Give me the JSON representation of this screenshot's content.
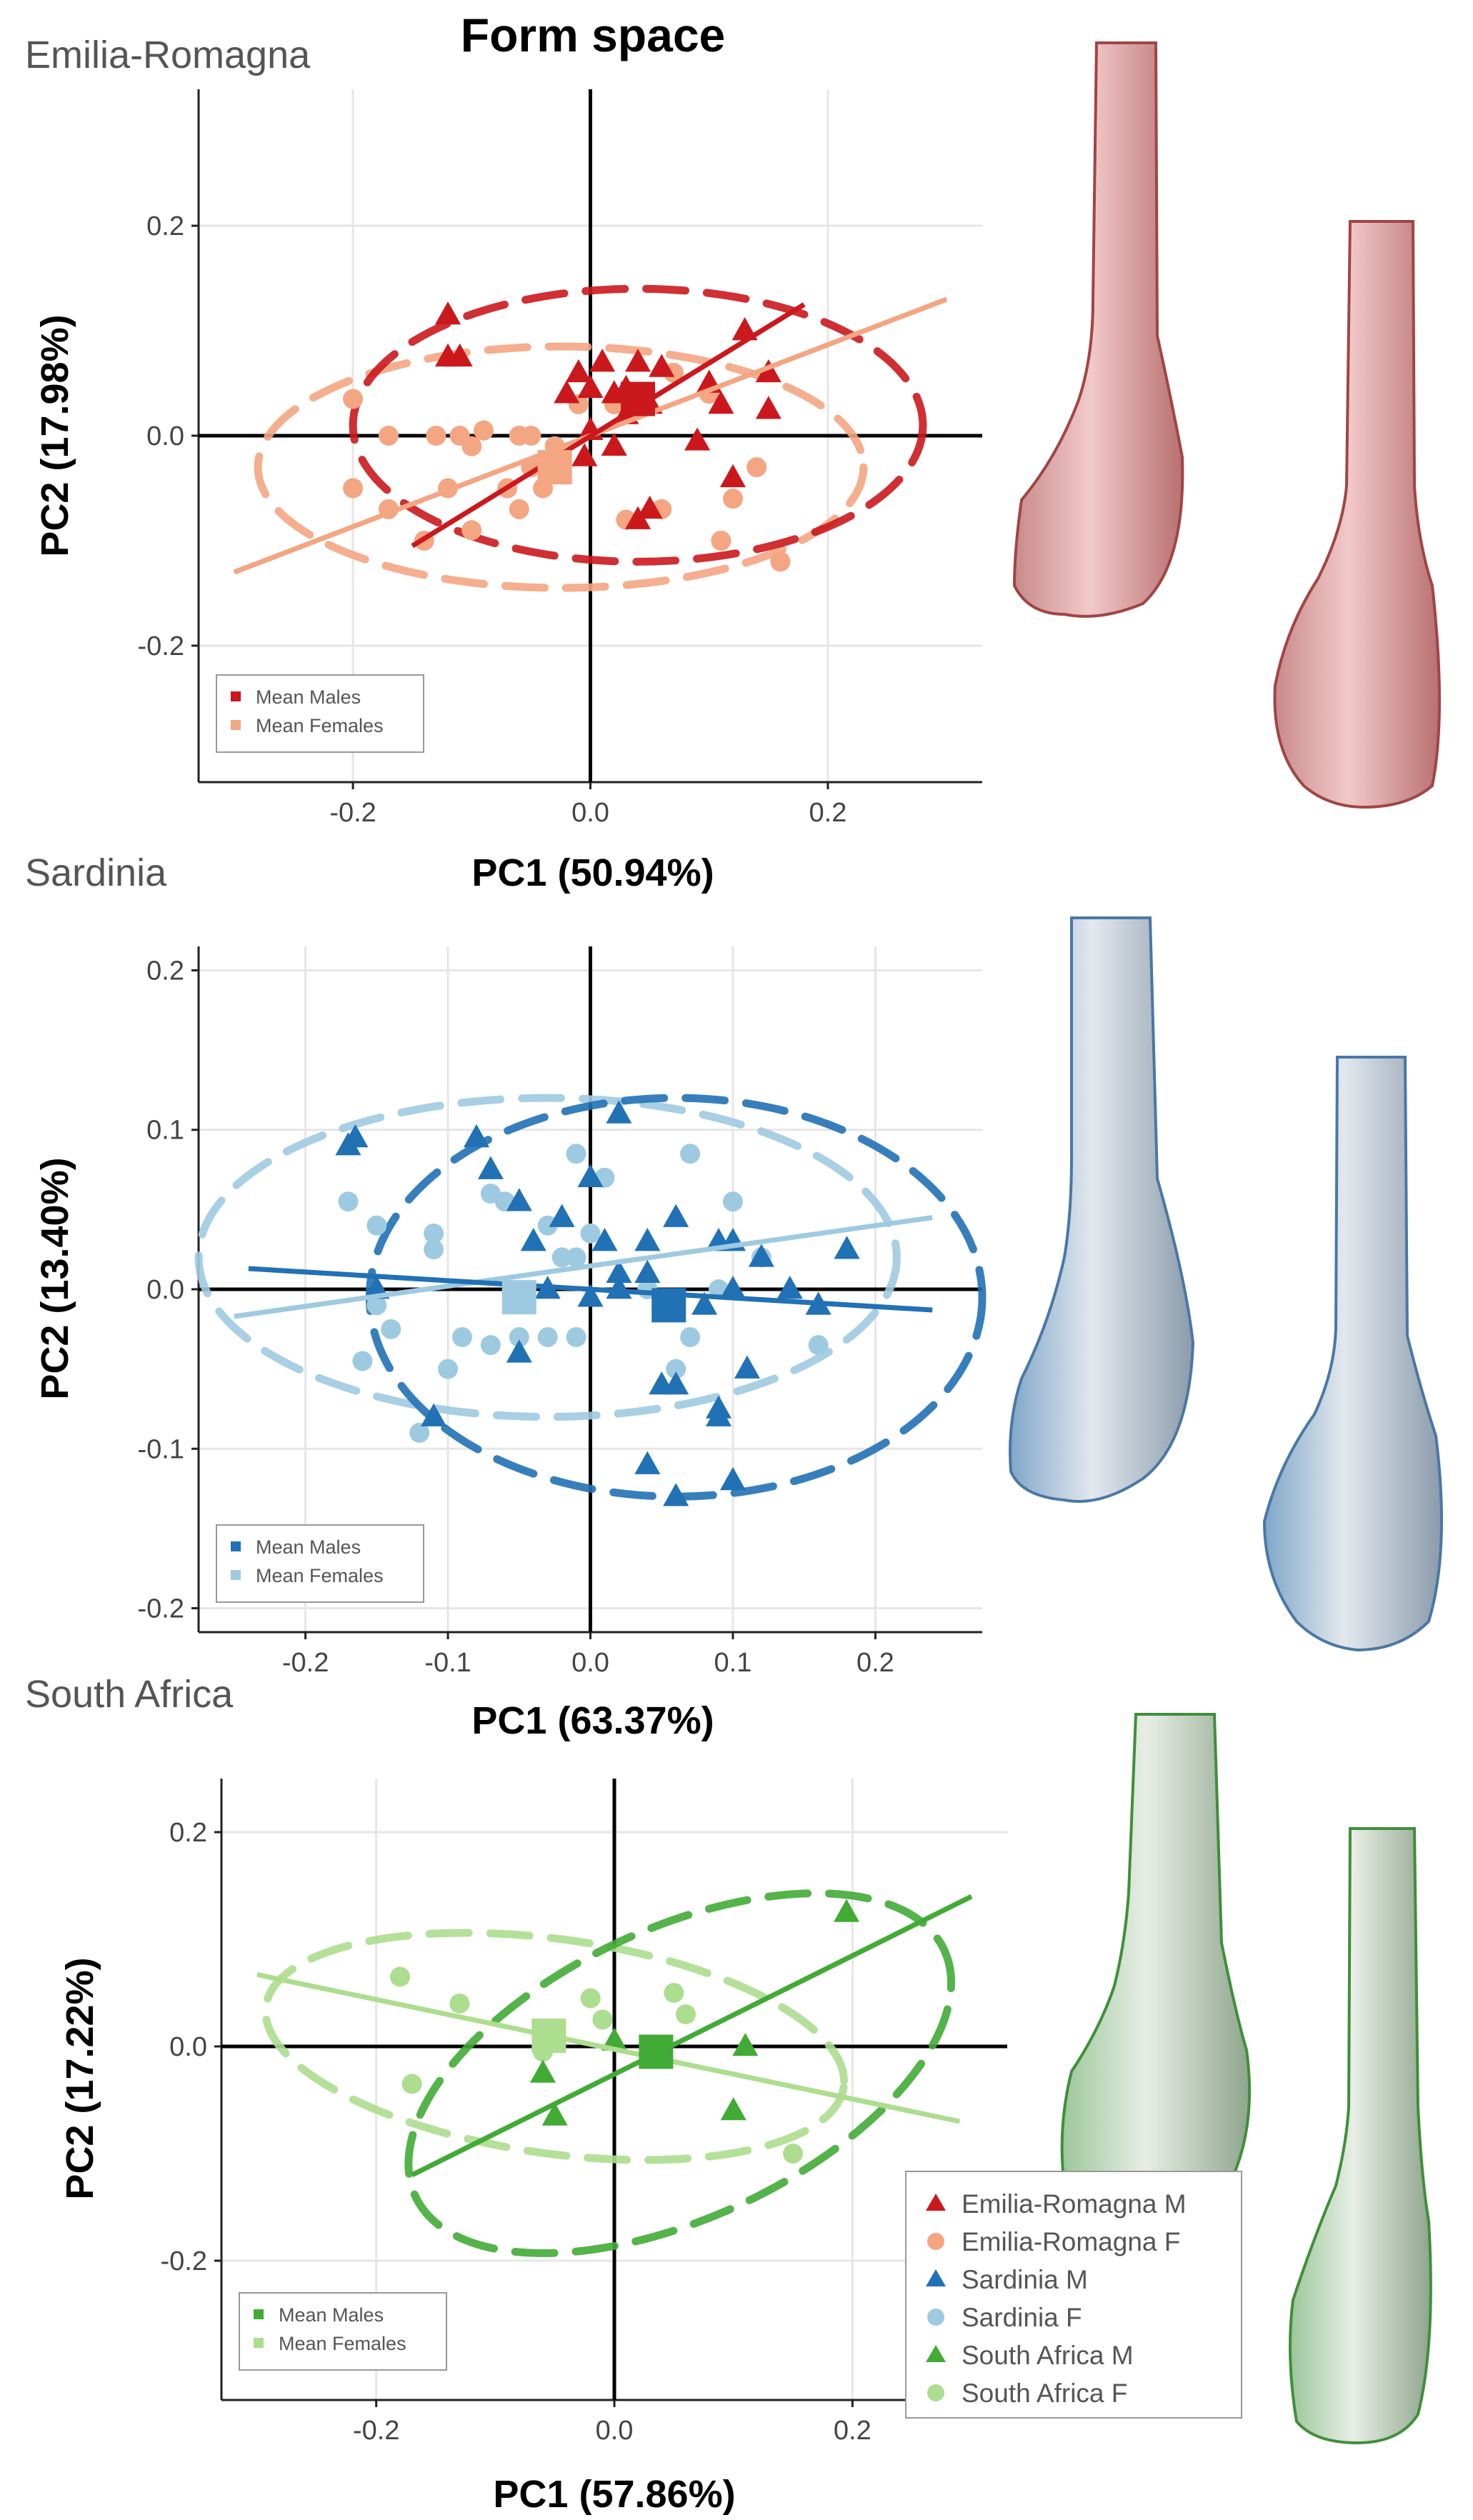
{
  "figure_title": "Form space",
  "colors": {
    "emilia_m": "#cb181d",
    "emilia_f": "#f4a582",
    "sardinia_m": "#2171b5",
    "sardinia_f": "#9ecae1",
    "safrica_m": "#41ab35",
    "safrica_f": "#addd8e"
  },
  "icons": [
    "bone-3d-render-icon"
  ],
  "legend": {
    "entries": [
      {
        "label": "Emilia-Romagna M",
        "shape": "triangle",
        "color": "#cb181d"
      },
      {
        "label": "Emilia-Romagna F",
        "shape": "circle",
        "color": "#f4a582"
      },
      {
        "label": "Sardinia M",
        "shape": "triangle",
        "color": "#2171b5"
      },
      {
        "label": "Sardinia F",
        "shape": "circle",
        "color": "#9ecae1"
      },
      {
        "label": "South Africa M",
        "shape": "triangle",
        "color": "#41ab35"
      },
      {
        "label": "South Africa F",
        "shape": "circle",
        "color": "#addd8e"
      }
    ]
  },
  "chart_data": [
    {
      "type": "scatter",
      "panel_label": "Emilia-Romagna",
      "xlabel": "PC1 (50.94%)",
      "ylabel": "PC2 (17.98%)",
      "xlim": [
        -0.33,
        0.33
      ],
      "ylim": [
        -0.33,
        0.33
      ],
      "xticks": [
        -0.2,
        0.0,
        0.2
      ],
      "yticks": [
        -0.2,
        0.0,
        0.2
      ],
      "xtick_labels": [
        "-0.2",
        "0.0",
        "0.2"
      ],
      "ytick_labels": [
        "-0.2",
        "0.0",
        "0.2"
      ],
      "legend_labels": [
        "Mean Males",
        "Mean Females"
      ],
      "male_color": "#cb181d",
      "female_color": "#f4a582",
      "males": [
        [
          -0.12,
          0.115
        ],
        [
          -0.11,
          0.075
        ],
        [
          -0.12,
          0.075
        ],
        [
          -0.01,
          0.06
        ],
        [
          0.01,
          0.07
        ],
        [
          0.02,
          0.04
        ],
        [
          -0.02,
          0.04
        ],
        [
          0.0,
          0.045
        ],
        [
          0.03,
          0.045
        ],
        [
          0.04,
          0.07
        ],
        [
          0.06,
          0.065
        ],
        [
          0.03,
          0.02
        ],
        [
          0.05,
          0.03
        ],
        [
          0.1,
          0.05
        ],
        [
          0.15,
          0.06
        ],
        [
          0.13,
          0.1
        ],
        [
          0.15,
          0.025
        ],
        [
          0.11,
          0.03
        ],
        [
          0.09,
          -0.005
        ],
        [
          0.12,
          -0.04
        ],
        [
          0.0,
          0.005
        ],
        [
          -0.005,
          -0.02
        ],
        [
          0.02,
          -0.01
        ],
        [
          0.05,
          -0.07
        ],
        [
          0.04,
          -0.08
        ]
      ],
      "females": [
        [
          -0.2,
          0.035
        ],
        [
          -0.17,
          0.0
        ],
        [
          -0.13,
          0.0
        ],
        [
          -0.11,
          0.0
        ],
        [
          -0.1,
          -0.01
        ],
        [
          -0.09,
          0.005
        ],
        [
          -0.06,
          0.0
        ],
        [
          -0.05,
          0.0
        ],
        [
          -0.03,
          -0.01
        ],
        [
          -0.05,
          -0.03
        ],
        [
          -0.04,
          -0.05
        ],
        [
          -0.07,
          -0.05
        ],
        [
          -0.06,
          -0.07
        ],
        [
          -0.12,
          -0.05
        ],
        [
          -0.17,
          -0.07
        ],
        [
          -0.2,
          -0.05
        ],
        [
          -0.1,
          -0.09
        ],
        [
          -0.14,
          -0.1
        ],
        [
          0.03,
          -0.08
        ],
        [
          0.06,
          -0.07
        ],
        [
          0.11,
          -0.1
        ],
        [
          0.12,
          -0.06
        ],
        [
          0.16,
          -0.12
        ],
        [
          0.14,
          -0.03
        ],
        [
          0.07,
          0.06
        ],
        [
          0.1,
          0.04
        ],
        [
          -0.01,
          0.03
        ],
        [
          0.02,
          0.03
        ]
      ],
      "mean_male": [
        0.04,
        0.035
      ],
      "mean_female": [
        -0.03,
        -0.03
      ],
      "male_ellipse": {
        "cx": 0.04,
        "cy": 0.01,
        "rx": 0.24,
        "ry": 0.13,
        "angle": 0
      },
      "female_ellipse": {
        "cx": -0.025,
        "cy": -0.03,
        "rx": 0.255,
        "ry": 0.115,
        "angle": 0
      },
      "male_line": [
        [
          -0.15,
          -0.105
        ],
        [
          0.18,
          0.125
        ]
      ],
      "female_line": [
        [
          -0.3,
          -0.13
        ],
        [
          0.3,
          0.13
        ]
      ]
    },
    {
      "type": "scatter",
      "panel_label": "Sardinia",
      "xlabel": "PC1 (63.37%)",
      "ylabel": "PC2 (13.40%)",
      "xlim": [
        -0.275,
        0.275
      ],
      "ylim": [
        -0.215,
        0.215
      ],
      "xticks": [
        -0.2,
        -0.1,
        0.0,
        0.1,
        0.2
      ],
      "yticks": [
        -0.2,
        -0.1,
        0.0,
        0.1,
        0.2
      ],
      "xtick_labels": [
        "-0.2",
        "-0.1",
        "0.0",
        "0.1",
        "0.2"
      ],
      "ytick_labels": [
        "-0.2",
        "-0.1",
        "0.0",
        "0.1",
        "0.2"
      ],
      "legend_labels": [
        "Mean Males",
        "Mean Females"
      ],
      "male_color": "#2171b5",
      "female_color": "#9ecae1",
      "males": [
        [
          -0.165,
          0.095
        ],
        [
          -0.08,
          0.095
        ],
        [
          -0.07,
          0.075
        ],
        [
          0.02,
          0.11
        ],
        [
          -0.05,
          0.055
        ],
        [
          -0.04,
          0.03
        ],
        [
          -0.03,
          0.0
        ],
        [
          -0.02,
          0.045
        ],
        [
          0.0,
          0.07
        ],
        [
          0.01,
          0.03
        ],
        [
          0.0,
          -0.005
        ],
        [
          0.02,
          0.01
        ],
        [
          0.04,
          0.03
        ],
        [
          0.06,
          0.045
        ],
        [
          0.09,
          0.03
        ],
        [
          0.1,
          0.03
        ],
        [
          0.12,
          0.02
        ],
        [
          0.14,
          0.0
        ],
        [
          0.16,
          -0.01
        ],
        [
          0.18,
          0.025
        ],
        [
          0.1,
          0.0
        ],
        [
          0.11,
          -0.05
        ],
        [
          0.09,
          -0.075
        ],
        [
          0.1,
          -0.12
        ],
        [
          0.06,
          -0.06
        ],
        [
          0.05,
          -0.06
        ],
        [
          0.04,
          -0.11
        ],
        [
          0.06,
          -0.13
        ],
        [
          0.09,
          -0.08
        ],
        [
          -0.11,
          -0.08
        ],
        [
          -0.17,
          0.09
        ],
        [
          -0.05,
          -0.04
        ],
        [
          0.02,
          0.0
        ],
        [
          0.04,
          0.01
        ],
        [
          -0.15,
          0.0
        ],
        [
          0.08,
          -0.01
        ]
      ],
      "females": [
        [
          -0.17,
          0.055
        ],
        [
          -0.15,
          0.04
        ],
        [
          -0.11,
          0.035
        ],
        [
          -0.11,
          0.025
        ],
        [
          -0.07,
          0.06
        ],
        [
          -0.06,
          0.055
        ],
        [
          -0.01,
          0.085
        ],
        [
          0.01,
          0.07
        ],
        [
          -0.03,
          0.04
        ],
        [
          -0.02,
          0.02
        ],
        [
          -0.01,
          0.02
        ],
        [
          0.0,
          0.035
        ],
        [
          0.04,
          0.0
        ],
        [
          0.07,
          -0.03
        ],
        [
          0.09,
          0.0
        ],
        [
          0.12,
          0.02
        ],
        [
          0.16,
          -0.035
        ],
        [
          -0.15,
          -0.01
        ],
        [
          -0.14,
          -0.025
        ],
        [
          -0.09,
          -0.03
        ],
        [
          -0.07,
          -0.035
        ],
        [
          -0.05,
          -0.03
        ],
        [
          -0.03,
          -0.03
        ],
        [
          -0.01,
          -0.03
        ],
        [
          0.06,
          -0.05
        ],
        [
          -0.12,
          -0.09
        ],
        [
          -0.1,
          -0.05
        ],
        [
          -0.16,
          -0.045
        ],
        [
          0.07,
          0.085
        ],
        [
          0.1,
          0.055
        ]
      ],
      "mean_male": [
        0.055,
        -0.01
      ],
      "mean_female": [
        -0.05,
        -0.005
      ],
      "male_ellipse": {
        "cx": 0.06,
        "cy": -0.005,
        "rx": 0.215,
        "ry": 0.125,
        "angle": 0
      },
      "female_ellipse": {
        "cx": -0.03,
        "cy": 0.02,
        "rx": 0.245,
        "ry": 0.1,
        "angle": 0
      },
      "male_line": [
        [
          -0.24,
          0.013
        ],
        [
          0.24,
          -0.013
        ]
      ],
      "female_line": [
        [
          -0.25,
          -0.017
        ],
        [
          0.24,
          0.045
        ]
      ]
    },
    {
      "type": "scatter",
      "panel_label": "South Africa",
      "xlabel": "PC1 (57.86%)",
      "ylabel": "PC2 (17.22%)",
      "xlim": [
        -0.33,
        0.33
      ],
      "ylim": [
        -0.33,
        0.25
      ],
      "xticks": [
        -0.2,
        0.0,
        0.2
      ],
      "yticks": [
        -0.2,
        0.0,
        0.2
      ],
      "xtick_labels": [
        "-0.2",
        "0.0",
        "0.2"
      ],
      "ytick_labels": [
        "-0.2",
        "0.0",
        "0.2"
      ],
      "legend_labels": [
        "Mean Males",
        "Mean Females"
      ],
      "male_color": "#41ab35",
      "female_color": "#addd8e",
      "males": [
        [
          0.195,
          0.125
        ],
        [
          0.11,
          0.0
        ],
        [
          0.1,
          -0.06
        ],
        [
          -0.06,
          -0.025
        ],
        [
          -0.05,
          -0.065
        ],
        [
          0.0,
          0.005
        ]
      ],
      "females": [
        [
          -0.18,
          0.065
        ],
        [
          -0.13,
          0.04
        ],
        [
          -0.17,
          -0.035
        ],
        [
          -0.02,
          0.045
        ],
        [
          -0.01,
          0.025
        ],
        [
          0.05,
          0.05
        ],
        [
          0.06,
          0.03
        ],
        [
          0.15,
          -0.1
        ],
        [
          -0.06,
          -0.005
        ],
        [
          -0.05,
          0.01
        ]
      ],
      "mean_male": [
        0.035,
        -0.005
      ],
      "mean_female": [
        -0.055,
        0.01
      ],
      "male_ellipse": {
        "cx": 0.055,
        "cy": -0.025,
        "rx": 0.245,
        "ry": 0.135,
        "angle": 25
      },
      "female_ellipse": {
        "cx": -0.05,
        "cy": 0.0,
        "rx": 0.245,
        "ry": 0.1,
        "angle": -8
      },
      "male_line": [
        [
          -0.17,
          -0.12
        ],
        [
          0.3,
          0.14
        ]
      ],
      "female_line": [
        [
          -0.3,
          0.067
        ],
        [
          0.29,
          -0.07
        ]
      ]
    }
  ]
}
